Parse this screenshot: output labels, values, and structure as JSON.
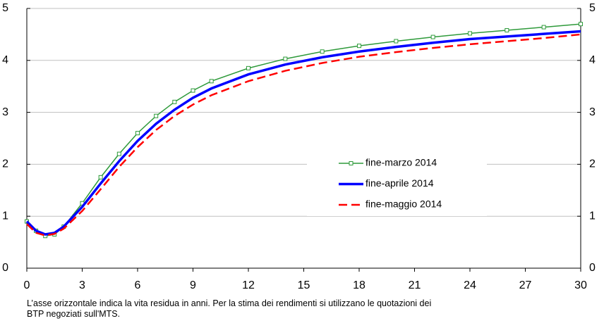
{
  "chart_data": {
    "type": "line",
    "note": "L’asse orizzontale indica la vita residua in anni. Per la stima dei rendimenti si utilizzano le quotazioni dei BTP negoziati sull'MTS.",
    "x": [
      0,
      0.5,
      1,
      1.5,
      2,
      3,
      4,
      5,
      6,
      7,
      8,
      9,
      10,
      12,
      14,
      16,
      18,
      20,
      22,
      24,
      26,
      28,
      30
    ],
    "series": [
      {
        "name": "fine-marzo 2014",
        "color": "#2e9a3a",
        "line_style": "solid",
        "line_width": 1.5,
        "marker": "square",
        "values": [
          0.9,
          0.72,
          0.62,
          0.65,
          0.8,
          1.25,
          1.75,
          2.2,
          2.6,
          2.93,
          3.2,
          3.42,
          3.6,
          3.85,
          4.03,
          4.17,
          4.28,
          4.37,
          4.45,
          4.52,
          4.58,
          4.64,
          4.7
        ]
      },
      {
        "name": "fine-aprile 2014",
        "color": "#0000ff",
        "line_style": "solid",
        "line_width": 3.5,
        "marker": "none",
        "values": [
          0.9,
          0.72,
          0.65,
          0.68,
          0.8,
          1.18,
          1.63,
          2.06,
          2.45,
          2.78,
          3.05,
          3.28,
          3.46,
          3.73,
          3.92,
          4.06,
          4.17,
          4.26,
          4.34,
          4.41,
          4.46,
          4.51,
          4.56
        ]
      },
      {
        "name": "fine-maggio 2014",
        "color": "#ff0000",
        "line_style": "dashed",
        "line_width": 2.5,
        "marker": "none",
        "values": [
          0.85,
          0.68,
          0.63,
          0.66,
          0.76,
          1.1,
          1.52,
          1.95,
          2.33,
          2.66,
          2.93,
          3.15,
          3.33,
          3.6,
          3.8,
          3.95,
          4.07,
          4.16,
          4.24,
          4.31,
          4.37,
          4.43,
          4.5
        ]
      }
    ],
    "xlim": [
      0,
      30
    ],
    "xticks": [
      0,
      3,
      6,
      9,
      12,
      15,
      18,
      21,
      24,
      27,
      30
    ],
    "ylim": [
      0,
      5
    ],
    "yticks": [
      0,
      1,
      2,
      3,
      4,
      5
    ],
    "y2lim": [
      0,
      5
    ],
    "y2ticks": [
      0,
      1,
      2,
      3,
      4,
      5
    ],
    "grid": true,
    "legend": "center-right"
  }
}
